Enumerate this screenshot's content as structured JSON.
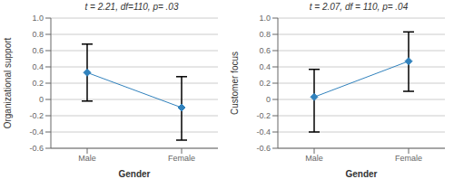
{
  "chart_data": [
    {
      "type": "line",
      "title": "t = 2.21, df=110, p= .03",
      "xlabel": "Gender",
      "ylabel": "Organizational support",
      "categories": [
        "Male",
        "Female"
      ],
      "series": [
        {
          "values": [
            0.33,
            -0.1
          ],
          "err_low": [
            0.35,
            0.4
          ],
          "err_high": [
            0.35,
            0.38
          ],
          "marker": "diamond"
        }
      ],
      "ylim": [
        -0.6,
        1.0
      ],
      "yticks": [
        -0.6,
        -0.4,
        -0.2,
        0,
        0.2,
        0.4,
        0.6,
        0.8,
        {
          "value": 1,
          "label": "1.0"
        }
      ],
      "grid": true
    },
    {
      "type": "line",
      "title": "t = 2.07, df = 110, p= .04",
      "xlabel": "Gender",
      "ylabel": "Customer focus",
      "categories": [
        "Male",
        "Female"
      ],
      "series": [
        {
          "values": [
            0.03,
            0.47
          ],
          "err_low": [
            0.43,
            0.37
          ],
          "err_high": [
            0.34,
            0.36
          ],
          "marker": "diamond"
        }
      ],
      "ylim": [
        -0.6,
        1.0
      ],
      "yticks": [
        -0.6,
        -0.4,
        -0.2,
        0,
        0.2,
        0.4,
        0.6,
        0.8,
        {
          "value": 1,
          "label": "1.0"
        }
      ],
      "grid": true
    }
  ]
}
